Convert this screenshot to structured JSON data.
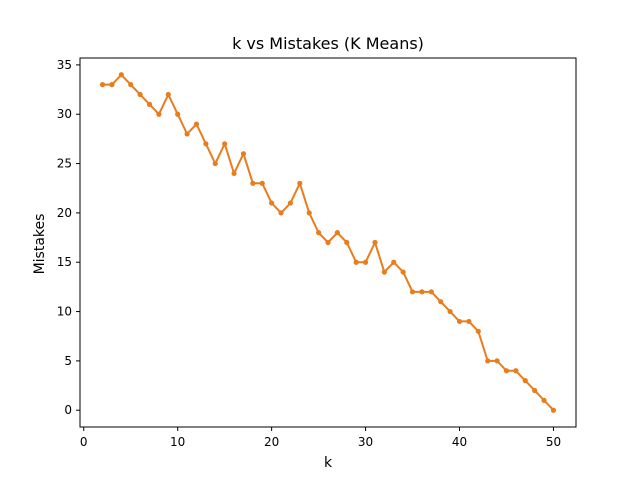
{
  "chart_data": {
    "type": "line",
    "title": "k vs Mistakes (K Means)",
    "xlabel": "k",
    "ylabel": "Mistakes",
    "xlim": [
      -0.4,
      52.4
    ],
    "ylim": [
      -1.7,
      35.7
    ],
    "xticks": [
      0,
      10,
      20,
      30,
      40,
      50
    ],
    "yticks": [
      0,
      5,
      10,
      15,
      20,
      25,
      30,
      35
    ],
    "grid": false,
    "legend": "none",
    "series": [
      {
        "color": "#e87d1e",
        "marker": "circle",
        "x": [
          2,
          3,
          4,
          5,
          6,
          7,
          8,
          9,
          10,
          11,
          12,
          13,
          14,
          15,
          16,
          17,
          18,
          19,
          20,
          21,
          22,
          23,
          24,
          25,
          26,
          27,
          28,
          29,
          30,
          31,
          32,
          33,
          34,
          35,
          36,
          37,
          38,
          39,
          40,
          41,
          42,
          43,
          44,
          45,
          46,
          47,
          48,
          49,
          50
        ],
        "y": [
          33,
          33,
          34,
          33,
          32,
          31,
          30,
          32,
          30,
          28,
          29,
          27,
          25,
          27,
          24,
          26,
          23,
          23,
          21,
          20,
          21,
          23,
          20,
          18,
          17,
          18,
          17,
          15,
          15,
          17,
          14,
          15,
          14,
          12,
          12,
          12,
          11,
          10,
          9,
          9,
          8,
          5,
          5,
          4,
          4,
          3,
          2,
          1,
          0
        ]
      }
    ]
  }
}
